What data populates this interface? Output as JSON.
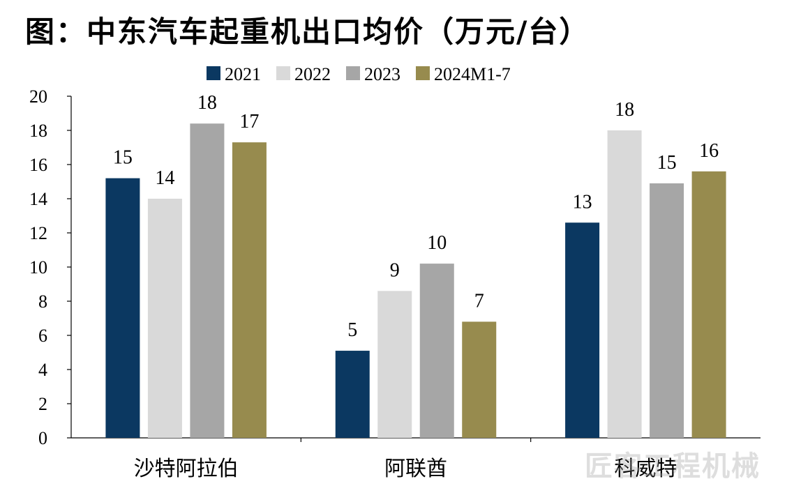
{
  "title": "图：中东汽车起重机出口均价（万元/台）",
  "watermark": "匠客工程机械",
  "chart_data": {
    "type": "bar",
    "title": "图：中东汽车起重机出口均价（万元/台）",
    "categories": [
      "沙特阿拉伯",
      "阿联酋",
      "科威特"
    ],
    "series": [
      {
        "name": "2021",
        "color": "#0B3861",
        "values": [
          15.2,
          5.1,
          12.6
        ],
        "labels": [
          "15",
          "5",
          "13"
        ]
      },
      {
        "name": "2022",
        "color": "#D9D9D9",
        "values": [
          14.0,
          8.6,
          18.0
        ],
        "labels": [
          "14",
          "9",
          "18"
        ]
      },
      {
        "name": "2023",
        "color": "#A6A6A6",
        "values": [
          18.4,
          10.2,
          14.9
        ],
        "labels": [
          "18",
          "10",
          "15"
        ]
      },
      {
        "name": "2024M1-7",
        "color": "#978B4E",
        "values": [
          17.3,
          6.8,
          15.6
        ],
        "labels": [
          "17",
          "7",
          "16"
        ]
      }
    ],
    "ylim": [
      0,
      20
    ],
    "yticks": [
      "0",
      "2",
      "4",
      "6",
      "8",
      "10",
      "12",
      "14",
      "16",
      "18",
      "20"
    ],
    "xlabel": "",
    "ylabel": "",
    "legend": "top",
    "grid": false
  }
}
